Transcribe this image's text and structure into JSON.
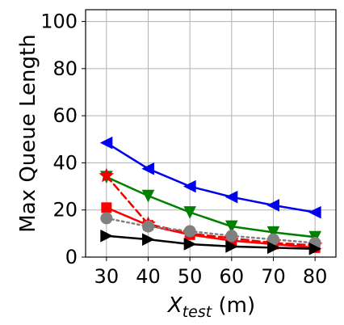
{
  "chart_data": {
    "type": "line",
    "xlabel_main": "X",
    "xlabel_sub": "test",
    "xlabel_unit": " (m)",
    "ylabel": "Max Queue Length",
    "xlim": [
      25,
      85
    ],
    "ylim": [
      0,
      105
    ],
    "grid": true,
    "x": [
      30,
      40,
      50,
      60,
      70,
      80
    ],
    "x_ticks": [
      "30",
      "40",
      "50",
      "60",
      "70",
      "80"
    ],
    "y_ticks": [
      0,
      20,
      40,
      60,
      80,
      100
    ],
    "y_tick_labels": [
      "0",
      "20",
      "40",
      "60",
      "80",
      "100"
    ],
    "series": [
      {
        "color": "#0000ee",
        "dash": "solid",
        "marker": "triangle-left",
        "values": [
          48.5,
          37.5,
          30,
          25.5,
          22,
          19
        ]
      },
      {
        "color": "#008000",
        "dash": "solid",
        "marker": "triangle-down",
        "values": [
          34,
          26,
          19,
          13,
          10.5,
          8.5
        ]
      },
      {
        "color": "#ee0000",
        "dash": "dashed",
        "marker": "star",
        "values": [
          34.5,
          14,
          10,
          8,
          6,
          5
        ]
      },
      {
        "color": "#ff0000",
        "dash": "solid",
        "marker": "square",
        "values": [
          21,
          13.5,
          9.5,
          7,
          5.5,
          4
        ]
      },
      {
        "color": "#808080",
        "dash": "dotted",
        "marker": "circle",
        "values": [
          16.5,
          13,
          11,
          9,
          7.5,
          6
        ]
      },
      {
        "color": "#000000",
        "dash": "solid",
        "marker": "triangle-right",
        "values": [
          9,
          7.5,
          5.5,
          4.5,
          4,
          3.5
        ]
      }
    ]
  }
}
